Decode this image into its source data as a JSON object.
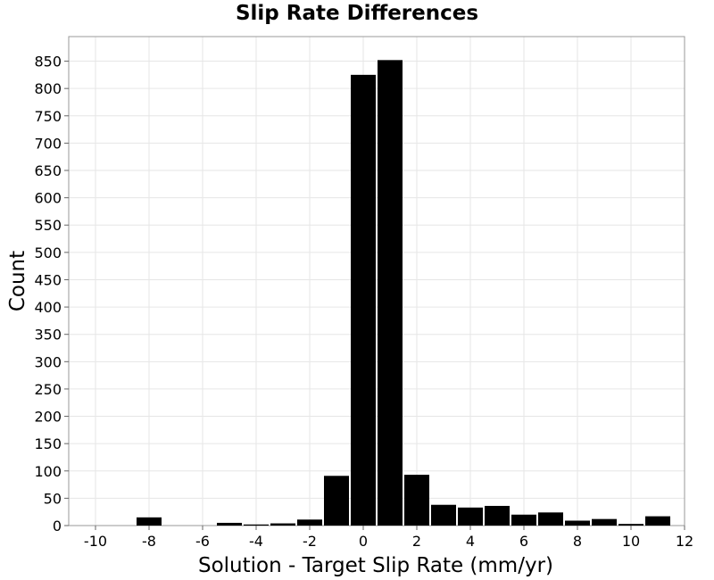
{
  "chart_data": {
    "type": "bar",
    "title": "Slip Rate Differences",
    "xlabel": "Solution - Target Slip Rate (mm/yr)",
    "ylabel": "Count",
    "xlim": [
      -11,
      12
    ],
    "ylim": [
      0,
      895
    ],
    "grid": true,
    "legend": "none",
    "bar_color": "#000000",
    "x_ticks": [
      "-10",
      "-8",
      "-6",
      "-4",
      "-2",
      "0",
      "2",
      "4",
      "6",
      "8",
      "10",
      "12"
    ],
    "y_ticks": [
      "0",
      "50",
      "100",
      "150",
      "200",
      "250",
      "300",
      "350",
      "400",
      "450",
      "500",
      "550",
      "600",
      "650",
      "700",
      "750",
      "800",
      "850"
    ],
    "bin_width": 1,
    "x": [
      -10,
      -9,
      -8,
      -7,
      -6,
      -5,
      -4,
      -3,
      -2,
      -1,
      0,
      1,
      2,
      3,
      4,
      5,
      6,
      7,
      8,
      9,
      10,
      11
    ],
    "values": [
      0,
      0,
      15,
      0,
      0,
      5,
      2,
      4,
      11,
      91,
      825,
      852,
      93,
      38,
      33,
      36,
      20,
      24,
      9,
      12,
      3,
      17
    ]
  }
}
